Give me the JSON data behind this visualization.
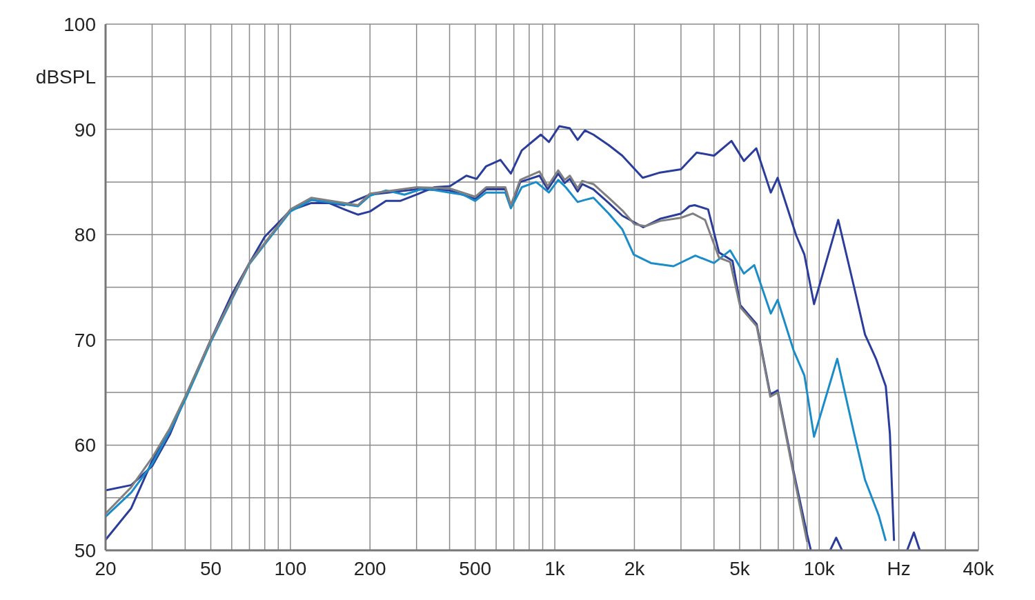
{
  "chart_data": {
    "type": "line",
    "log": "x",
    "grid": true,
    "legend": false,
    "marker": "none",
    "line_style": "solid",
    "xlim": [
      20,
      40000
    ],
    "ylim": [
      50,
      100
    ],
    "xticks": [
      20,
      {
        "value": 30,
        "label": null
      },
      {
        "value": 40,
        "label": null
      },
      50,
      {
        "value": 60,
        "label": null
      },
      {
        "value": 70,
        "label": null
      },
      {
        "value": 80,
        "label": null
      },
      {
        "value": 90,
        "label": null
      },
      100,
      200,
      {
        "value": 300,
        "label": null
      },
      {
        "value": 400,
        "label": null
      },
      500,
      {
        "value": 600,
        "label": null
      },
      {
        "value": 700,
        "label": null
      },
      {
        "value": 800,
        "label": null
      },
      {
        "value": 900,
        "label": null
      },
      {
        "value": 1000,
        "label": "1k"
      },
      {
        "value": 2000,
        "label": "2k"
      },
      {
        "value": 3000,
        "label": null
      },
      {
        "value": 4000,
        "label": null
      },
      {
        "value": 5000,
        "label": "5k"
      },
      {
        "value": 6000,
        "label": null
      },
      {
        "value": 7000,
        "label": null
      },
      {
        "value": 8000,
        "label": null
      },
      {
        "value": 9000,
        "label": null
      },
      {
        "value": 10000,
        "label": "10k"
      },
      {
        "value": 20000,
        "label": "Hz"
      },
      {
        "value": 30000,
        "label": null
      },
      {
        "value": 40000,
        "label": "40k"
      }
    ],
    "yticks": [
      50,
      {
        "value": 55,
        "label": null
      },
      60,
      {
        "value": 65,
        "label": null
      },
      70,
      {
        "value": 75,
        "label": null
      },
      80,
      {
        "value": 85,
        "label": null
      },
      90,
      {
        "value": 95,
        "label": "dBSPL"
      },
      100
    ],
    "series": [
      {
        "color": "#2b3d9a",
        "x": [
          20,
          25,
          30,
          35,
          40,
          50,
          60,
          70,
          80,
          100,
          120,
          140,
          160,
          180,
          200,
          230,
          260,
          300,
          350,
          401,
          463,
          506,
          550,
          623,
          682,
          750,
          885,
          950,
          1040,
          1140,
          1220,
          1300,
          1400,
          1600,
          1800,
          2150,
          2500,
          3000,
          3440,
          4000,
          4658,
          5190,
          5780,
          6560,
          6960,
          8190,
          8790,
          9560,
          11800,
          13550,
          14900,
          16400,
          17850,
          18500,
          19180
        ],
        "values": [
          55.7,
          56.2,
          58,
          61,
          64.5,
          70,
          74.3,
          77.3,
          79.8,
          82.3,
          83,
          83,
          82.4,
          81.9,
          82.2,
          83.2,
          83.2,
          83.8,
          84.5,
          84.6,
          85.6,
          85.3,
          86.5,
          87.1,
          85.8,
          88,
          89.5,
          88.8,
          90.3,
          90.1,
          89,
          89.9,
          89.5,
          88.5,
          87.5,
          85.4,
          85.9,
          86.2,
          87.8,
          87.5,
          88.9,
          87,
          88.2,
          84,
          85.4,
          79.9,
          78.1,
          73.4,
          81.4,
          75,
          70.5,
          68.2,
          65.6,
          61.1,
          50.9
        ]
      },
      {
        "color": "#2b3d9a",
        "x": [
          20,
          25,
          30,
          35,
          40,
          50,
          70,
          100,
          120,
          160,
          200,
          300,
          400,
          500,
          550,
          650,
          682,
          740,
          875,
          940,
          1030,
          1090,
          1140,
          1220,
          1270,
          1400,
          1600,
          1800,
          2160,
          2500,
          3000,
          3230,
          3380,
          3800,
          4180,
          4700,
          5030,
          5800,
          6530,
          6960,
          8000,
          9000,
          9300,
          10500,
          11000,
          11590,
          12200,
          13000,
          21500,
          22800,
          24000
        ],
        "values": [
          51,
          54,
          58.5,
          61.5,
          64.5,
          70,
          77.3,
          82.3,
          83.3,
          82.8,
          83.8,
          84.3,
          84.2,
          83.4,
          84.3,
          84.3,
          82.6,
          85,
          85.6,
          84.3,
          85.8,
          84.9,
          85.3,
          84.1,
          84.8,
          84.3,
          83,
          81.8,
          80.7,
          81.5,
          82,
          82.7,
          82.8,
          82.4,
          78.3,
          77.5,
          73.3,
          71.5,
          64.8,
          65.2,
          57.5,
          51.5,
          50,
          null,
          50,
          51.2,
          50,
          null,
          50,
          51.7,
          50
        ]
      },
      {
        "color": "#1a8cc8",
        "x": [
          20,
          25,
          30,
          35,
          40,
          50,
          70,
          100,
          120,
          180,
          200,
          230,
          270,
          320,
          400,
          450,
          500,
          550,
          650,
          682,
          750,
          850,
          950,
          1030,
          1100,
          1220,
          1300,
          1400,
          1600,
          1800,
          1988,
          2310,
          2810,
          3400,
          4000,
          4604,
          5190,
          5680,
          6560,
          6960,
          8000,
          8790,
          9560,
          11700,
          13550,
          14900,
          16800,
          17850
        ],
        "values": [
          53.2,
          55.5,
          58.2,
          61.3,
          64.3,
          69.8,
          77.2,
          82.2,
          83.3,
          82.7,
          83.7,
          84.2,
          83.8,
          84.4,
          84,
          83.8,
          83.2,
          84,
          84,
          82.5,
          84.5,
          85,
          84,
          85.2,
          84.5,
          83.1,
          83.3,
          83.5,
          82,
          80.5,
          78.1,
          77.3,
          77,
          78,
          77.3,
          78.5,
          76.3,
          77.1,
          72.5,
          73.8,
          69,
          66.6,
          60.8,
          68.2,
          61.1,
          56.7,
          53.3,
          50.9
        ]
      },
      {
        "color": "#808080",
        "x": [
          20,
          25,
          30,
          35,
          40,
          50,
          70,
          100,
          120,
          180,
          200,
          300,
          400,
          500,
          550,
          650,
          682,
          740,
          875,
          940,
          1030,
          1090,
          1140,
          1220,
          1270,
          1400,
          1600,
          1800,
          2000,
          2200,
          2500,
          3000,
          3327,
          3700,
          4180,
          4604,
          5030,
          5800,
          6530,
          6960,
          8000,
          9000
        ],
        "values": [
          53.5,
          56,
          58.8,
          61.6,
          64.6,
          70,
          77.3,
          82.4,
          83.5,
          82.8,
          83.9,
          84.5,
          84.4,
          83.6,
          84.5,
          84.5,
          82.8,
          85.2,
          86,
          84.6,
          86.1,
          85.2,
          85.6,
          84.4,
          85.1,
          84.8,
          83.5,
          82.3,
          81,
          80.8,
          81.3,
          81.6,
          82,
          81.4,
          77.8,
          77.4,
          73.1,
          71.3,
          64.6,
          65,
          57.2,
          50.8
        ]
      }
    ]
  }
}
